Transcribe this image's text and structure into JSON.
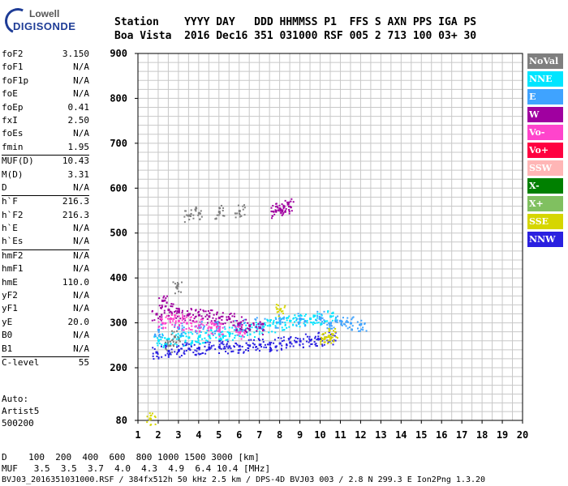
{
  "logo": {
    "line1": "Lowell",
    "line2": "DIGISONDE"
  },
  "header": {
    "row1": "Station    YYYY DAY   DDD HHMMSS P1  FFS S AXN PPS IGA PS",
    "row2": "Boa Vista  2016 Dec16 351 031000 RSF 005 2 713 100 03+ 30"
  },
  "params": [
    {
      "label": "foF2",
      "value": "3.150"
    },
    {
      "label": "foF1",
      "value": "N/A"
    },
    {
      "label": "foF1p",
      "value": "N/A"
    },
    {
      "label": "foE",
      "value": "N/A"
    },
    {
      "label": "foEp",
      "value": "0.41"
    },
    {
      "label": "fxI",
      "value": "2.50"
    },
    {
      "label": "foEs",
      "value": "N/A"
    },
    {
      "label": "fmin",
      "value": "1.95"
    },
    {
      "label": "MUF(D)",
      "value": "10.43",
      "sep": true
    },
    {
      "label": "M(D)",
      "value": "3.31"
    },
    {
      "label": "D",
      "value": "N/A"
    },
    {
      "label": "h`F",
      "value": "216.3",
      "sep": true
    },
    {
      "label": "h`F2",
      "value": "216.3"
    },
    {
      "label": "h`E",
      "value": "N/A"
    },
    {
      "label": "h`Es",
      "value": "N/A"
    },
    {
      "label": "hmF2",
      "value": "N/A",
      "sep": true
    },
    {
      "label": "hmF1",
      "value": "N/A"
    },
    {
      "label": "hmE",
      "value": "110.0"
    },
    {
      "label": "yF2",
      "value": "N/A"
    },
    {
      "label": "yF1",
      "value": "N/A"
    },
    {
      "label": "yE",
      "value": "20.0"
    },
    {
      "label": "B0",
      "value": "N/A"
    },
    {
      "label": "B1",
      "value": "N/A"
    },
    {
      "label": "C-level",
      "value": "55",
      "sep": true
    }
  ],
  "auto": {
    "line1": "Auto:",
    "line2": "Artist5",
    "line3": "500200"
  },
  "legend": [
    {
      "label": "NoVal",
      "color": "#7f7f7f"
    },
    {
      "label": "NNE",
      "color": "#00e5ff"
    },
    {
      "label": "E",
      "color": "#3fa3ff"
    },
    {
      "label": "W",
      "color": "#a000a0"
    },
    {
      "label": "Vo-",
      "color": "#ff44cc"
    },
    {
      "label": "Vo+",
      "color": "#ff0040"
    },
    {
      "label": "SSW",
      "color": "#ffb6b6"
    },
    {
      "label": "X-",
      "color": "#008000"
    },
    {
      "label": "X+",
      "color": "#80c060"
    },
    {
      "label": "SSE",
      "color": "#d6d600"
    },
    {
      "label": "NNW",
      "color": "#2a20e0"
    }
  ],
  "footer": {
    "d_row": "D    100  200  400  600  800 1000 1500 3000 [km]",
    "muf_row": "MUF   3.5  3.5  3.7  4.0  4.3  4.9  6.4 10.4 [MHz]",
    "file_row": "BVJ03_2016351031000.RSF / 384fx512h 50 kHz 2.5 km / DPS-4D BVJ03 003 / 2.8 N 299.3 E Ion2Png 1.3.20"
  },
  "chart_data": {
    "type": "scatter",
    "x_ticks": [
      "1",
      "2",
      "3",
      "4",
      "5",
      "6",
      "7",
      "8",
      "9",
      "10",
      "11",
      "12",
      "13",
      "14",
      "15",
      "16",
      "17",
      "18",
      "19",
      "20"
    ],
    "y_ticks": [
      "80",
      "200",
      "300",
      "400",
      "500",
      "600",
      "700",
      "800",
      "900"
    ],
    "xlim": [
      1,
      20
    ],
    "ylim": [
      80,
      900
    ],
    "grid": true,
    "traces": [
      {
        "name": "NNW",
        "color": "#2a20e0",
        "points": [
          [
            1.9,
            235
          ],
          [
            2.5,
            238
          ],
          [
            3,
            240
          ],
          [
            3.5,
            243
          ],
          [
            4,
            245
          ],
          [
            4.5,
            246
          ],
          [
            5,
            247
          ],
          [
            5.5,
            248
          ],
          [
            6,
            249
          ],
          [
            6.5,
            250
          ],
          [
            7,
            252
          ],
          [
            7.5,
            253
          ],
          [
            8,
            255
          ],
          [
            8.5,
            257
          ],
          [
            9,
            260
          ],
          [
            9.5,
            262
          ],
          [
            10,
            265
          ],
          [
            10.5,
            268
          ]
        ]
      },
      {
        "name": "NNE",
        "color": "#00e5ff",
        "points": [
          [
            2,
            262
          ],
          [
            2.5,
            265
          ],
          [
            3,
            266
          ],
          [
            3.5,
            268
          ],
          [
            4,
            270
          ],
          [
            4.5,
            272
          ],
          [
            5,
            275
          ],
          [
            5.5,
            278
          ],
          [
            6,
            282
          ],
          [
            6.5,
            285
          ],
          [
            7,
            290
          ],
          [
            7.5,
            295
          ],
          [
            8,
            300
          ],
          [
            8.5,
            305
          ],
          [
            9,
            308
          ],
          [
            9.5,
            310
          ],
          [
            10,
            312
          ],
          [
            10.5,
            315
          ]
        ]
      },
      {
        "name": "E",
        "color": "#3fa3ff",
        "points": [
          [
            2,
            285
          ],
          [
            3,
            288
          ],
          [
            4,
            290
          ],
          [
            5,
            292
          ],
          [
            6,
            295
          ],
          [
            7,
            300
          ],
          [
            8,
            305
          ],
          [
            9,
            310
          ],
          [
            10,
            312
          ],
          [
            10.5,
            300
          ],
          [
            11,
            305
          ],
          [
            11.5,
            300
          ],
          [
            12,
            298
          ]
        ]
      },
      {
        "name": "W",
        "color": "#a000a0",
        "points": [
          [
            1.9,
            320
          ],
          [
            2.2,
            350
          ],
          [
            2.5,
            330
          ],
          [
            3,
            325
          ],
          [
            3.5,
            320
          ],
          [
            4,
            318
          ],
          [
            4.5,
            315
          ],
          [
            5,
            312
          ],
          [
            5.5,
            310
          ],
          [
            6,
            300
          ],
          [
            6.5,
            295
          ],
          [
            7,
            290
          ],
          [
            7.8,
            550
          ],
          [
            8,
            555
          ],
          [
            8.2,
            560
          ],
          [
            8.4,
            565
          ]
        ]
      },
      {
        "name": "Vo-",
        "color": "#ff44cc",
        "points": [
          [
            2.2,
            300
          ],
          [
            2.6,
            310
          ],
          [
            3,
            305
          ],
          [
            3.4,
            300
          ],
          [
            4,
            295
          ],
          [
            4.6,
            290
          ],
          [
            5,
            285
          ],
          [
            6,
            280
          ]
        ]
      },
      {
        "name": "SSE",
        "color": "#d6d600",
        "points": [
          [
            8,
            330
          ],
          [
            10.2,
            265
          ],
          [
            10.4,
            270
          ],
          [
            10.6,
            275
          ],
          [
            1.6,
            84
          ]
        ]
      },
      {
        "name": "NoVal",
        "color": "#7f7f7f",
        "points": [
          [
            2.5,
            250
          ],
          [
            2.8,
            270
          ],
          [
            2.9,
            380
          ],
          [
            3.5,
            540
          ],
          [
            4,
            545
          ],
          [
            5,
            548
          ],
          [
            6,
            550
          ]
        ]
      }
    ]
  }
}
